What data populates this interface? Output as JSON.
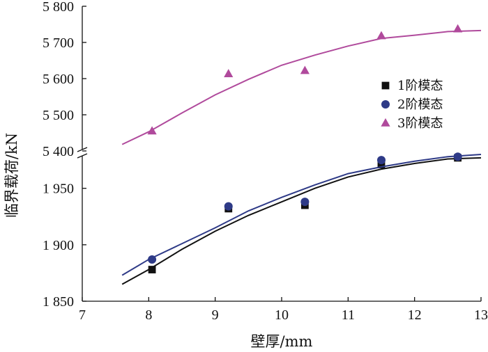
{
  "chart_data": {
    "type": "line",
    "xlabel": "壁厚/mm",
    "ylabel": "临界载荷/kN",
    "x_ticks": [
      "7",
      "8",
      "9",
      "10",
      "11",
      "12",
      "13"
    ],
    "xlim": [
      7,
      13
    ],
    "upper_panel": {
      "ylim": [
        5400,
        5800
      ],
      "y_ticks": [
        5400,
        5500,
        5600,
        5700,
        5800
      ],
      "y_tick_labels": [
        "5 400",
        "5 500",
        "5 600",
        "5 700",
        "5 800"
      ]
    },
    "lower_panel": {
      "ylim": [
        1850,
        1980
      ],
      "y_ticks": [
        1850,
        1900,
        1950
      ],
      "y_tick_labels": [
        "1 850",
        "1 900",
        "1 950"
      ]
    },
    "axis_break": "broken y-axis between 1 980 and 5 400",
    "series": [
      {
        "name": "1阶模态",
        "panel": "lower",
        "marker": "square",
        "color": "#111111",
        "points_x": [
          8.05,
          9.2,
          10.35,
          11.5,
          12.65
        ],
        "points_y": [
          1878,
          1932,
          1935,
          1971,
          1977
        ],
        "curve_x": [
          7.6,
          8.0,
          8.5,
          9.0,
          9.5,
          10.0,
          10.5,
          11.0,
          11.5,
          12.0,
          12.5,
          13.0
        ],
        "curve_y": [
          1865,
          1878,
          1896,
          1912,
          1926,
          1938,
          1950,
          1960,
          1967,
          1972,
          1976,
          1977
        ]
      },
      {
        "name": "2阶模态",
        "panel": "lower",
        "marker": "circle",
        "color": "#2e3a87",
        "points_x": [
          8.05,
          9.2,
          10.35,
          11.5,
          12.65
        ],
        "points_y": [
          1887,
          1934,
          1938,
          1975,
          1978
        ],
        "curve_x": [
          7.6,
          8.0,
          8.5,
          9.0,
          9.5,
          10.0,
          10.5,
          11.0,
          11.5,
          12.0,
          12.5,
          13.0
        ],
        "curve_y": [
          1873,
          1887,
          1901,
          1915,
          1930,
          1942,
          1953,
          1963,
          1969,
          1974,
          1978,
          1980
        ]
      },
      {
        "name": "3阶模态",
        "panel": "upper",
        "marker": "triangle",
        "color": "#b04a9c",
        "points_x": [
          8.05,
          9.2,
          10.35,
          11.5,
          12.65
        ],
        "points_y": [
          5455,
          5613,
          5622,
          5718,
          5737
        ],
        "curve_x": [
          7.6,
          8.0,
          8.5,
          9.0,
          9.5,
          10.0,
          10.5,
          11.0,
          11.5,
          12.0,
          12.5,
          13.0
        ],
        "curve_y": [
          5418,
          5453,
          5505,
          5555,
          5598,
          5637,
          5665,
          5690,
          5711,
          5720,
          5730,
          5733
        ]
      }
    ],
    "legend": {
      "position": "right-middle",
      "entries": [
        "1阶模态",
        "2阶模态",
        "3阶模态"
      ]
    }
  }
}
